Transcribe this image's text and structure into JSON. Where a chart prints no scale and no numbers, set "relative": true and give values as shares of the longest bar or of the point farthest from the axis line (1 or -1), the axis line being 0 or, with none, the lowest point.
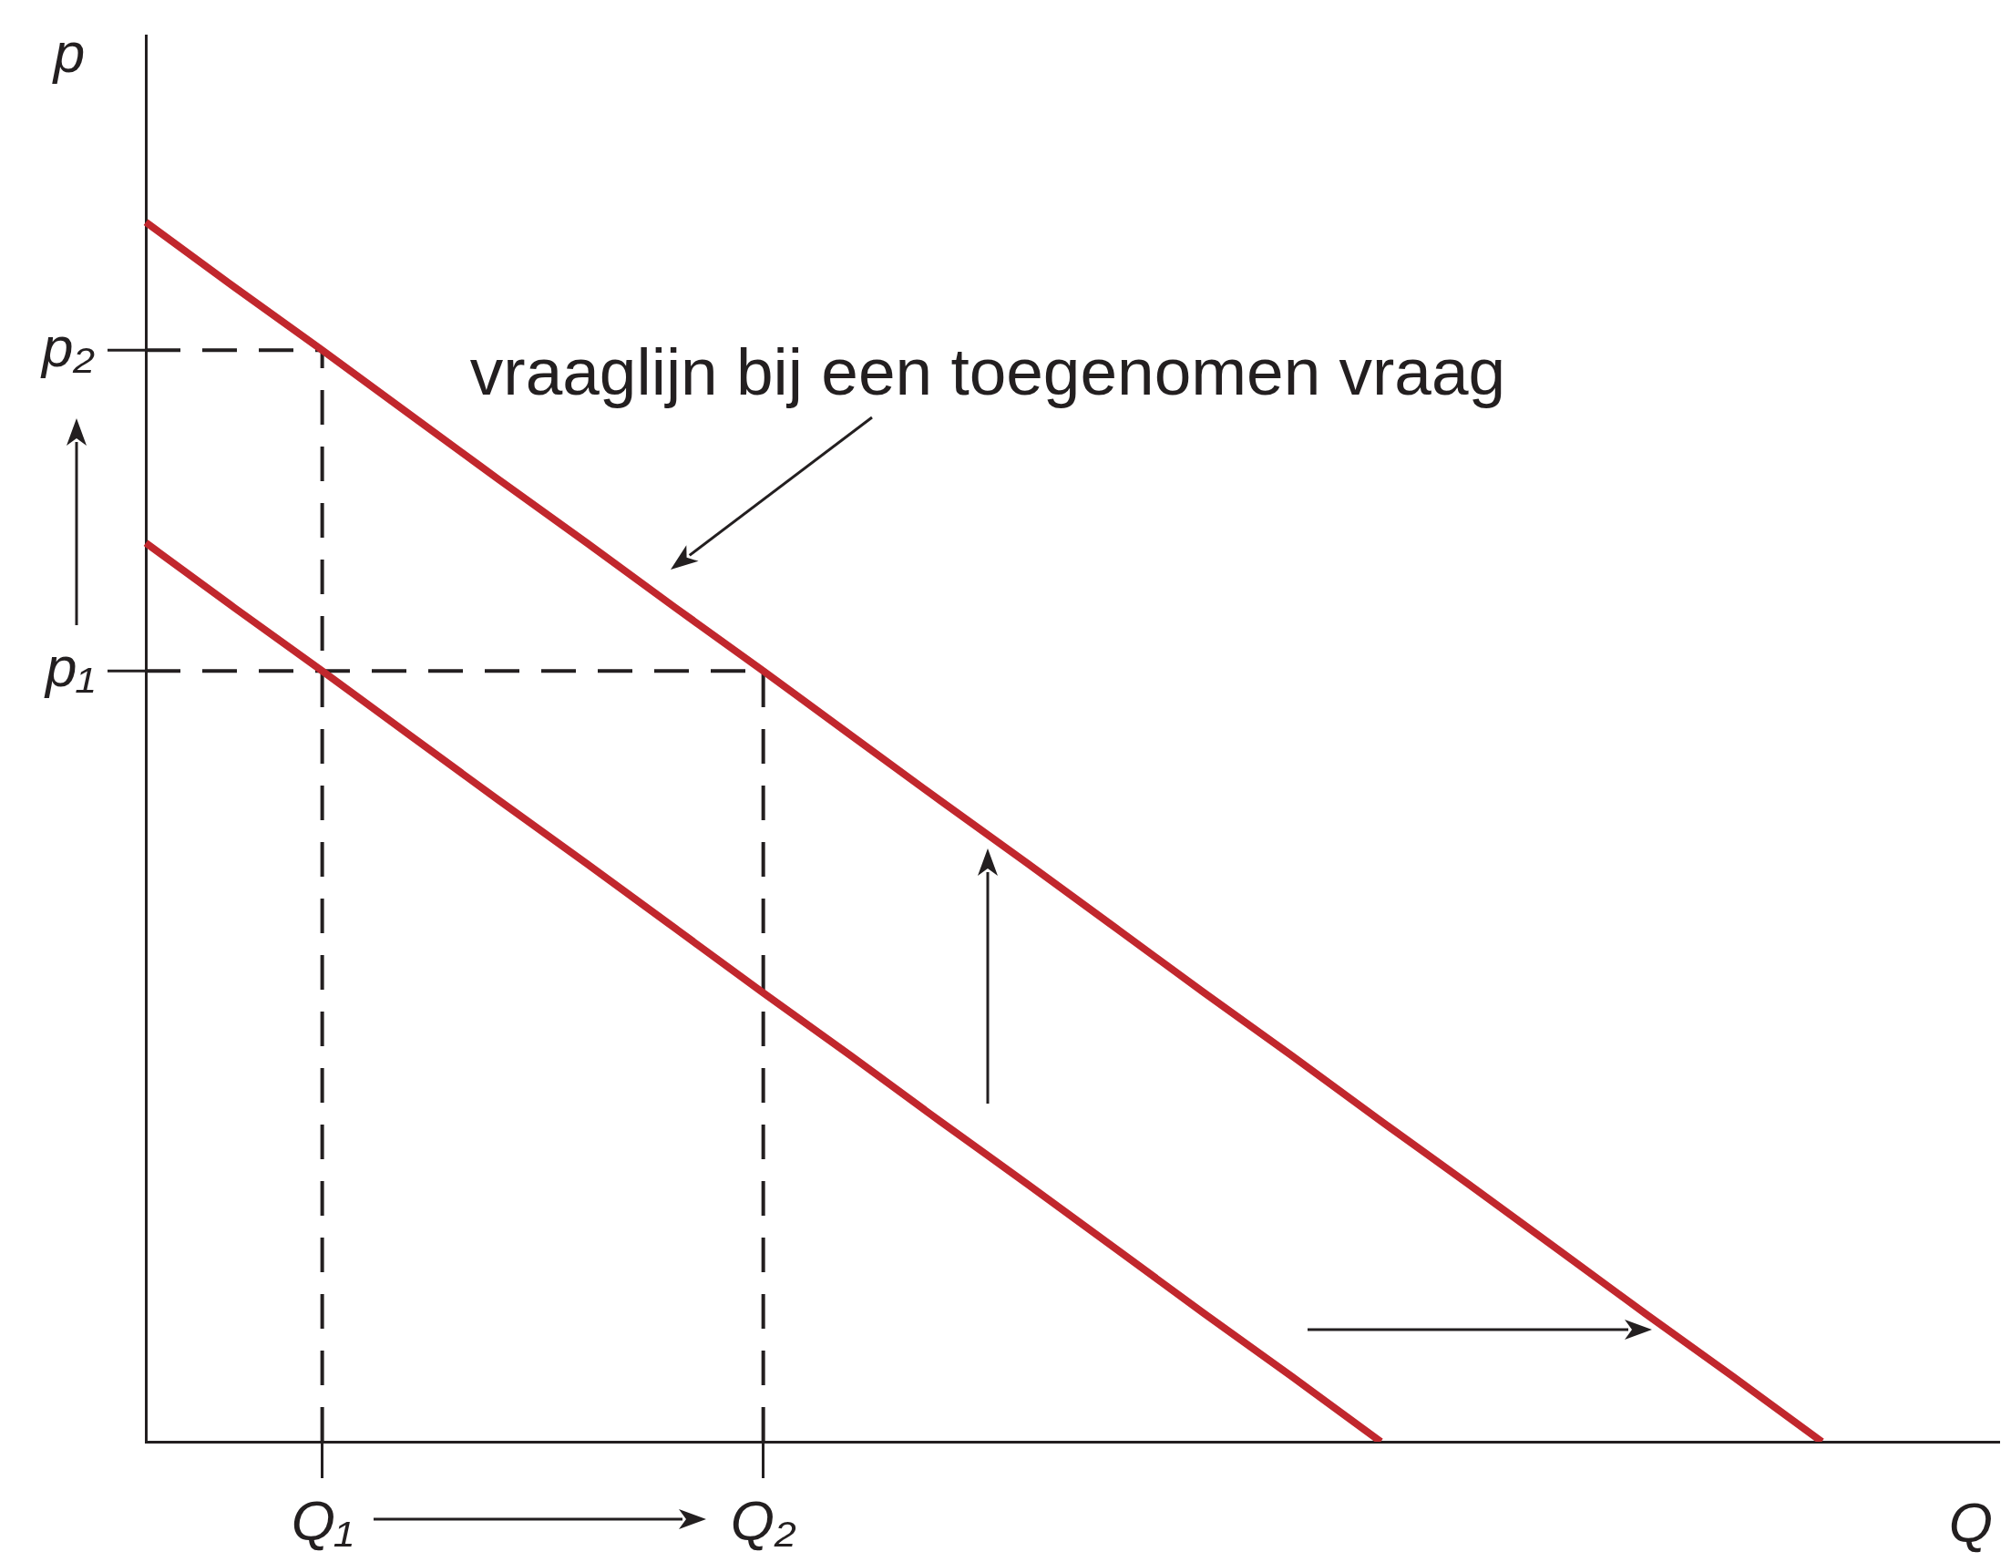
{
  "chart_data": {
    "type": "line",
    "relative": true,
    "xlabel": "Q",
    "ylabel": "p",
    "grid": false,
    "marker": "none",
    "line_style": "solid",
    "categories": [
      null,
      null,
      "Q₁",
      null,
      null,
      null,
      null,
      "Q₂",
      null,
      null,
      null,
      null,
      null,
      null,
      null,
      null,
      null,
      null,
      null,
      null,
      null,
      null
    ],
    "series": [
      {
        "color": "#c1272d",
        "values": [
          0.737,
          0.684,
          0.632,
          0.579,
          0.526,
          0.474,
          0.421,
          0.368,
          0.316,
          0.263,
          0.211,
          0.158,
          0.105,
          0.053,
          0,
          null,
          null,
          null,
          null,
          null,
          null,
          null
        ]
      },
      {
        "color": "#c1272d",
        "values": [
          1,
          0.947,
          0.895,
          0.842,
          0.789,
          0.737,
          0.684,
          0.632,
          0.579,
          0.526,
          0.474,
          0.421,
          0.368,
          0.316,
          0.263,
          0.211,
          0.158,
          0.105,
          0.053,
          0,
          null,
          null
        ]
      }
    ],
    "ref_lines": [
      {
        "axis": "y",
        "value": 0.895,
        "label": "p₂",
        "color": "#231f20",
        "line_style": "dashed"
      },
      {
        "axis": "y",
        "value": 0.632,
        "label": "p₁",
        "color": "#231f20",
        "line_style": "dashed"
      },
      {
        "axis": "x",
        "value": "Q₁",
        "color": "#231f20",
        "line_style": "dashed"
      },
      {
        "axis": "x",
        "value": "Q₂",
        "color": "#231f20",
        "line_style": "dashed"
      }
    ],
    "annotations": [
      "vraaglijn bij een toegenomen vraag"
    ]
  }
}
